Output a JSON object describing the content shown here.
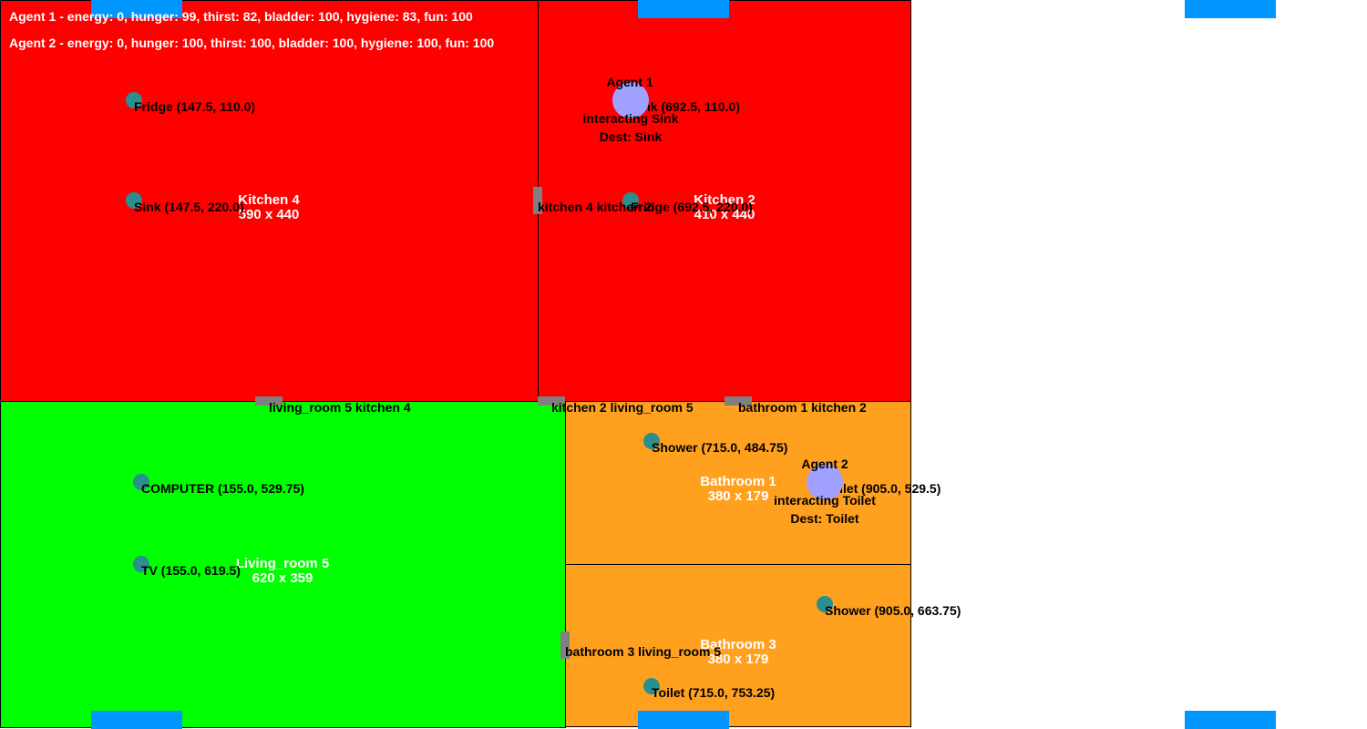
{
  "colors": {
    "kitchen": "#ff0000",
    "living_room": "#00ff00",
    "bathroom": "#ffa01e",
    "agent": "#a0a0ff",
    "object": "#2a8f8f",
    "door": "#808080",
    "window": "#0096ff"
  },
  "status": {
    "agent1": "Agent 1 - energy: 0, hunger: 99, thirst: 82, bladder: 100, hygiene: 83, fun: 100",
    "agent2": "Agent 2 - energy: 0, hunger: 100, thirst: 100, bladder: 100, hygiene: 100, fun: 100"
  },
  "rooms": {
    "kitchen4": {
      "name": "Kitchen 4",
      "size": "590 x 440"
    },
    "kitchen2": {
      "name": "Kitchen 2",
      "size": "410 x 440"
    },
    "living5": {
      "name": "Living_room 5",
      "size": "620 x 359"
    },
    "bathroom1": {
      "name": "Bathroom 1",
      "size": "380 x 179"
    },
    "bathroom3": {
      "name": "Bathroom 3",
      "size": "380 x 179"
    }
  },
  "objects": {
    "fridge_k4": "Fridge (147.5, 110.0)",
    "sink_k4": "Sink (147.5, 220.0)",
    "sink_k2": "Sink (692.5, 110.0)",
    "fridge_k2": "Fridge (692.5, 220.0)",
    "computer": "COMPUTER (155.0, 529.75)",
    "tv": "TV (155.0, 619.5)",
    "shower_b1": "Shower (715.0, 484.75)",
    "toilet_b1": "Toilet (905.0, 529.5)",
    "shower_b3": "Shower (905.0, 663.75)",
    "toilet_b3": "Toilet (715.0, 753.25)"
  },
  "doors": {
    "k4_k2": "kitchen 4 kitchen 2",
    "lr5_k4": "living_room 5 kitchen 4",
    "k2_lr5": "kitchen 2 living_room 5",
    "b1_k2": "bathroom 1 kitchen 2",
    "b3_lr5": "bathroom 3 living_room 5"
  },
  "agents": {
    "agent1": {
      "name": "Agent 1",
      "action": "interacting Sink",
      "dest": "Dest: Sink"
    },
    "agent2": {
      "name": "Agent 2",
      "action": "interacting Toilet",
      "dest": "Dest: Toilet"
    }
  }
}
